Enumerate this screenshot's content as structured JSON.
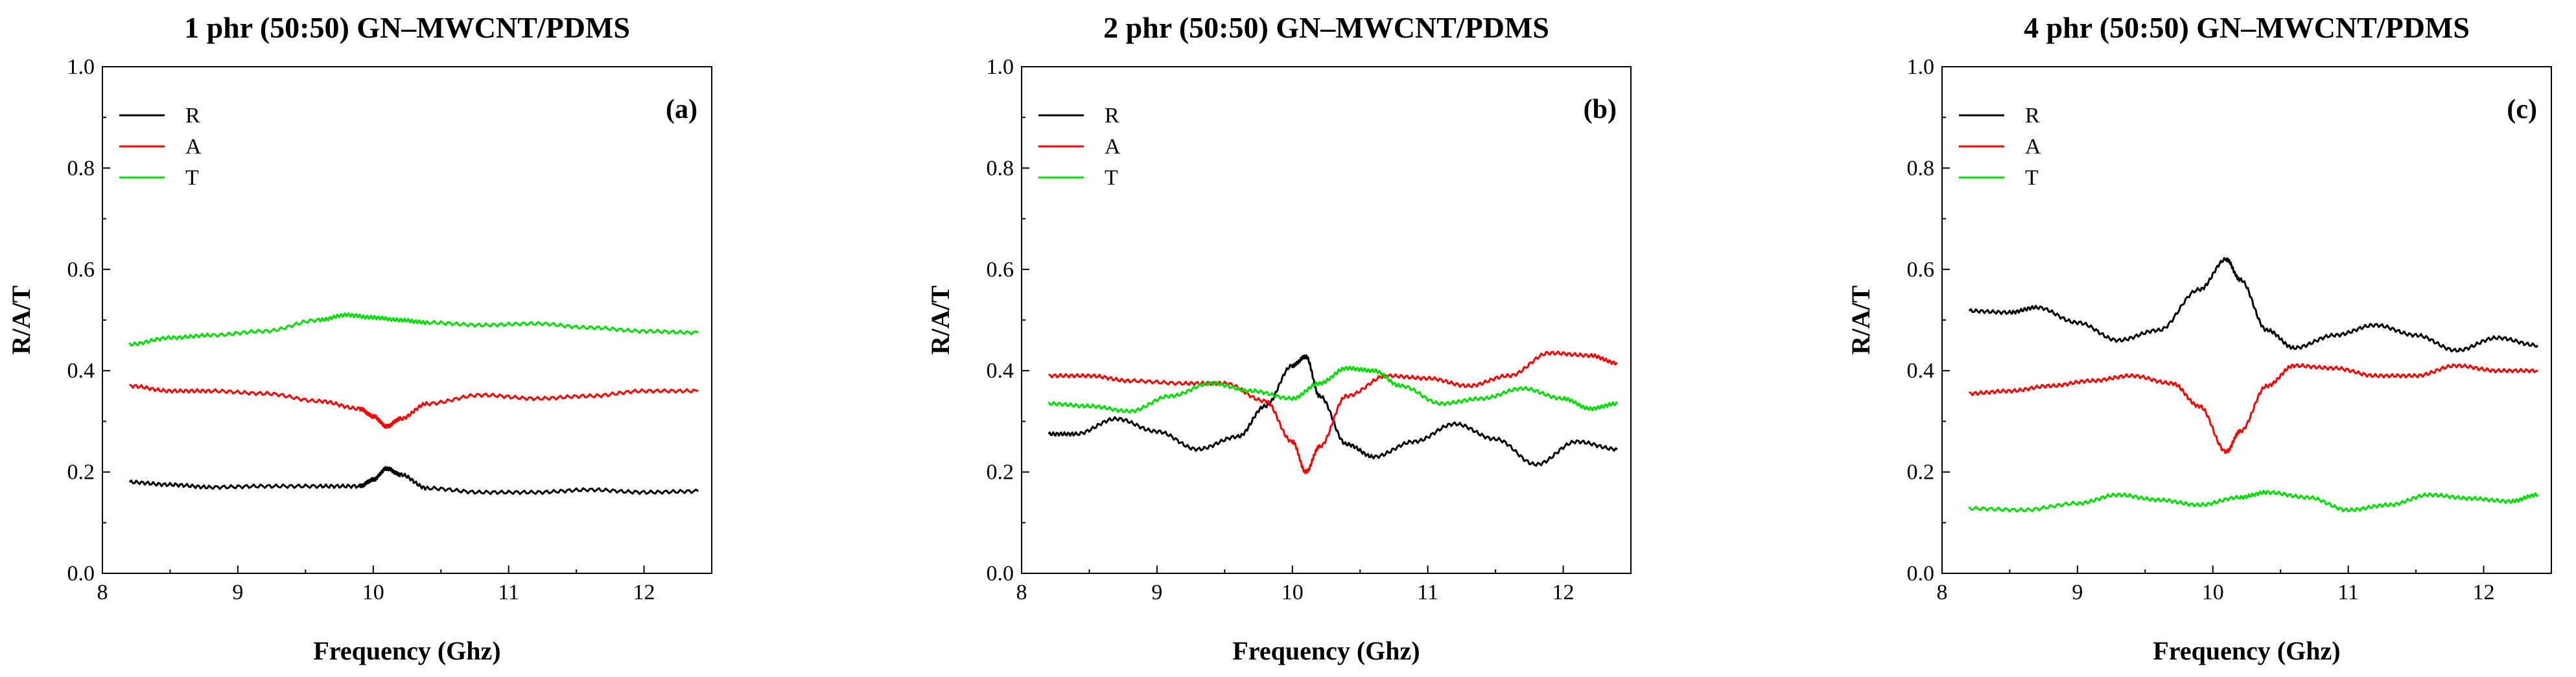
{
  "chart_data": [
    {
      "type": "line",
      "title": "1 phr (50:50) GN–MWCNT/PDMS",
      "panel_label": "(a)",
      "xlabel": "Frequency (Ghz)",
      "ylabel": "R/A/T",
      "xlim": [
        8,
        12.5
      ],
      "ylim": [
        0,
        1
      ],
      "xticks": [
        8,
        9,
        10,
        11,
        12
      ],
      "xtick_labels": [
        "8",
        "9",
        "10",
        "11",
        "12"
      ],
      "yticks": [
        0,
        0.2,
        0.4,
        0.6,
        0.8,
        1.0
      ],
      "ytick_labels": [
        "0.0",
        "0.2",
        "0.4",
        "0.6",
        "0.8",
        "1.0"
      ],
      "legend_position": "top-left",
      "series": [
        {
          "name": "R",
          "color": "#000000",
          "x": [
            8.2,
            8.5,
            8.8,
            9.2,
            9.6,
            9.9,
            10.0,
            10.1,
            10.2,
            10.4,
            10.8,
            11.2,
            11.6,
            12.0,
            12.4
          ],
          "y": [
            0.18,
            0.175,
            0.17,
            0.172,
            0.172,
            0.172,
            0.185,
            0.207,
            0.195,
            0.168,
            0.16,
            0.16,
            0.165,
            0.16,
            0.162
          ]
        },
        {
          "name": "A",
          "color": "#ff0000",
          "x": [
            8.2,
            8.5,
            8.8,
            9.2,
            9.6,
            9.9,
            10.0,
            10.1,
            10.2,
            10.4,
            10.8,
            11.2,
            11.6,
            12.0,
            12.4
          ],
          "y": [
            0.37,
            0.36,
            0.36,
            0.355,
            0.34,
            0.325,
            0.31,
            0.29,
            0.305,
            0.335,
            0.352,
            0.345,
            0.35,
            0.36,
            0.36
          ]
        },
        {
          "name": "T",
          "color": "#00e000",
          "x": [
            8.2,
            8.5,
            8.8,
            9.2,
            9.6,
            9.8,
            10.0,
            10.2,
            10.4,
            10.8,
            11.2,
            11.6,
            12.0,
            12.4
          ],
          "y": [
            0.452,
            0.465,
            0.47,
            0.478,
            0.5,
            0.51,
            0.505,
            0.5,
            0.495,
            0.49,
            0.493,
            0.485,
            0.478,
            0.475
          ]
        }
      ]
    },
    {
      "type": "line",
      "title": "2 phr (50:50) GN–MWCNT/PDMS",
      "panel_label": "(b)",
      "xlabel": "Frequency (Ghz)",
      "ylabel": "R/A/T",
      "xlim": [
        8,
        12.5
      ],
      "ylim": [
        0,
        1
      ],
      "xticks": [
        8,
        9,
        10,
        11,
        12
      ],
      "xtick_labels": [
        "8",
        "9",
        "10",
        "11",
        "12"
      ],
      "yticks": [
        0,
        0.2,
        0.4,
        0.6,
        0.8,
        1.0
      ],
      "ytick_labels": [
        "0.0",
        "0.2",
        "0.4",
        "0.6",
        "0.8",
        "1.0"
      ],
      "legend_position": "top-left",
      "series": [
        {
          "name": "R",
          "color": "#000000",
          "x": [
            8.2,
            8.4,
            8.7,
            9.0,
            9.3,
            9.6,
            9.8,
            10.0,
            10.1,
            10.2,
            10.4,
            10.6,
            10.9,
            11.2,
            11.5,
            11.8,
            12.1,
            12.4
          ],
          "y": [
            0.275,
            0.275,
            0.305,
            0.28,
            0.245,
            0.27,
            0.33,
            0.41,
            0.428,
            0.35,
            0.255,
            0.23,
            0.26,
            0.295,
            0.265,
            0.215,
            0.26,
            0.245
          ]
        },
        {
          "name": "A",
          "color": "#ff0000",
          "x": [
            8.2,
            8.5,
            8.8,
            9.2,
            9.5,
            9.8,
            10.0,
            10.1,
            10.2,
            10.4,
            10.7,
            11.0,
            11.3,
            11.6,
            11.9,
            12.2,
            12.4
          ],
          "y": [
            0.39,
            0.39,
            0.38,
            0.375,
            0.375,
            0.34,
            0.26,
            0.2,
            0.25,
            0.35,
            0.39,
            0.385,
            0.37,
            0.39,
            0.435,
            0.43,
            0.415
          ]
        },
        {
          "name": "T",
          "color": "#00e000",
          "x": [
            8.2,
            8.5,
            8.8,
            9.1,
            9.4,
            9.7,
            10.0,
            10.2,
            10.4,
            10.6,
            10.8,
            11.1,
            11.4,
            11.7,
            12.0,
            12.2,
            12.4
          ],
          "y": [
            0.335,
            0.33,
            0.32,
            0.35,
            0.375,
            0.36,
            0.345,
            0.375,
            0.405,
            0.4,
            0.37,
            0.335,
            0.345,
            0.365,
            0.345,
            0.325,
            0.335
          ]
        }
      ]
    },
    {
      "type": "line",
      "title": "4 phr (50:50) GN–MWCNT/PDMS",
      "panel_label": "(c)",
      "xlabel": "Frequency (Ghz)",
      "ylabel": "R/A/T",
      "xlim": [
        8,
        12.5
      ],
      "ylim": [
        0,
        1
      ],
      "xticks": [
        8,
        9,
        10,
        11,
        12
      ],
      "xtick_labels": [
        "8",
        "9",
        "10",
        "11",
        "12"
      ],
      "yticks": [
        0,
        0.2,
        0.4,
        0.6,
        0.8,
        1.0
      ],
      "ytick_labels": [
        "0.0",
        "0.2",
        "0.4",
        "0.6",
        "0.8",
        "1.0"
      ],
      "legend_position": "top-left",
      "series": [
        {
          "name": "R",
          "color": "#000000",
          "x": [
            8.2,
            8.5,
            8.7,
            9.0,
            9.3,
            9.6,
            9.9,
            10.1,
            10.2,
            10.4,
            10.6,
            10.9,
            11.2,
            11.5,
            11.8,
            12.1,
            12.4
          ],
          "y": [
            0.518,
            0.515,
            0.525,
            0.495,
            0.46,
            0.48,
            0.56,
            0.62,
            0.58,
            0.48,
            0.445,
            0.47,
            0.49,
            0.47,
            0.44,
            0.465,
            0.45
          ]
        },
        {
          "name": "A",
          "color": "#ff0000",
          "x": [
            8.2,
            8.5,
            8.8,
            9.1,
            9.4,
            9.7,
            9.9,
            10.1,
            10.2,
            10.4,
            10.6,
            10.9,
            11.2,
            11.5,
            11.8,
            12.1,
            12.4
          ],
          "y": [
            0.355,
            0.36,
            0.37,
            0.38,
            0.39,
            0.375,
            0.33,
            0.24,
            0.28,
            0.37,
            0.41,
            0.405,
            0.39,
            0.39,
            0.41,
            0.4,
            0.4
          ]
        },
        {
          "name": "T",
          "color": "#00e000",
          "x": [
            8.2,
            8.6,
            9.0,
            9.3,
            9.6,
            9.9,
            10.2,
            10.4,
            10.7,
            11.0,
            11.3,
            11.6,
            11.9,
            12.2,
            12.4
          ],
          "y": [
            0.128,
            0.125,
            0.138,
            0.155,
            0.145,
            0.135,
            0.15,
            0.16,
            0.15,
            0.125,
            0.135,
            0.155,
            0.148,
            0.142,
            0.155
          ]
        }
      ]
    }
  ]
}
